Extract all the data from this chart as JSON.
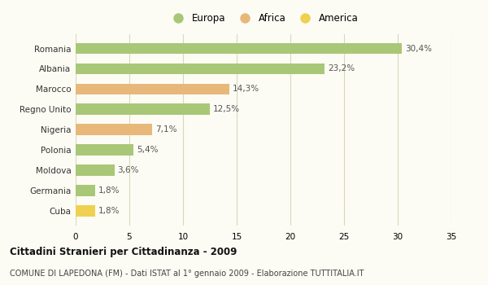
{
  "categories": [
    "Romania",
    "Albania",
    "Marocco",
    "Regno Unito",
    "Nigeria",
    "Polonia",
    "Moldova",
    "Germania",
    "Cuba"
  ],
  "values": [
    30.4,
    23.2,
    14.3,
    12.5,
    7.1,
    5.4,
    3.6,
    1.8,
    1.8
  ],
  "labels": [
    "30,4%",
    "23,2%",
    "14,3%",
    "12,5%",
    "7,1%",
    "5,4%",
    "3,6%",
    "1,8%",
    "1,8%"
  ],
  "continents": [
    "Europa",
    "Europa",
    "Africa",
    "Europa",
    "Africa",
    "Europa",
    "Europa",
    "Europa",
    "America"
  ],
  "colors": {
    "Europa": "#a8c878",
    "Africa": "#e8b87a",
    "America": "#f0d050"
  },
  "legend_items": [
    "Europa",
    "Africa",
    "America"
  ],
  "legend_colors": [
    "#a8c878",
    "#e8b87a",
    "#f0d050"
  ],
  "title": "Cittadini Stranieri per Cittadinanza - 2009",
  "subtitle": "COMUNE DI LAPEDONA (FM) - Dati ISTAT al 1° gennaio 2009 - Elaborazione TUTTITALIA.IT",
  "xlim": [
    0,
    35
  ],
  "xticks": [
    0,
    5,
    10,
    15,
    20,
    25,
    30,
    35
  ],
  "bg_color": "#fcfcf4",
  "grid_color": "#d8d8c0"
}
